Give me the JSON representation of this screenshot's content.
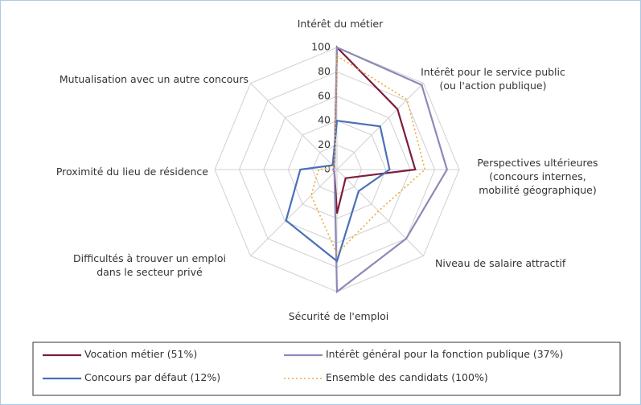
{
  "chart_data": {
    "type": "radar",
    "categories": [
      "Intérêt du métier",
      "Intérêt pour le service public\n(ou l'action publique)",
      "Perspectives ultérieures\n(concours internes,\nmobilité géographique)",
      "Niveau de salaire attractif",
      "Sécurité de l'emploi",
      "Difficultés à trouver un emploi\ndans le secteur privé",
      "Proximité du lieu de résidence",
      "Mutualisation avec un autre concours"
    ],
    "rlim": [
      0,
      100
    ],
    "rticks": [
      0,
      20,
      40,
      60,
      80,
      100
    ],
    "grid": true,
    "series": [
      {
        "name": "Vocation métier (51%)",
        "color": "#7b1c3e",
        "dash": false,
        "values": [
          100,
          70,
          64,
          10,
          36,
          3,
          3,
          3
        ]
      },
      {
        "name": "Intérêt général pour la fonction publique (37%)",
        "color": "#8d89b8",
        "dash": false,
        "values": [
          100,
          98,
          90,
          80,
          100,
          3,
          3,
          3
        ]
      },
      {
        "name": "Concours par défaut  (12%)",
        "color": "#4a70b8",
        "dash": false,
        "values": [
          40,
          50,
          43,
          25,
          75,
          59,
          30,
          5
        ]
      },
      {
        "name": "Ensemble des candidats (100%)",
        "color": "#f0a830",
        "dash": true,
        "values": [
          93,
          81,
          72,
          48,
          69,
          30,
          15,
          3
        ]
      }
    ]
  }
}
